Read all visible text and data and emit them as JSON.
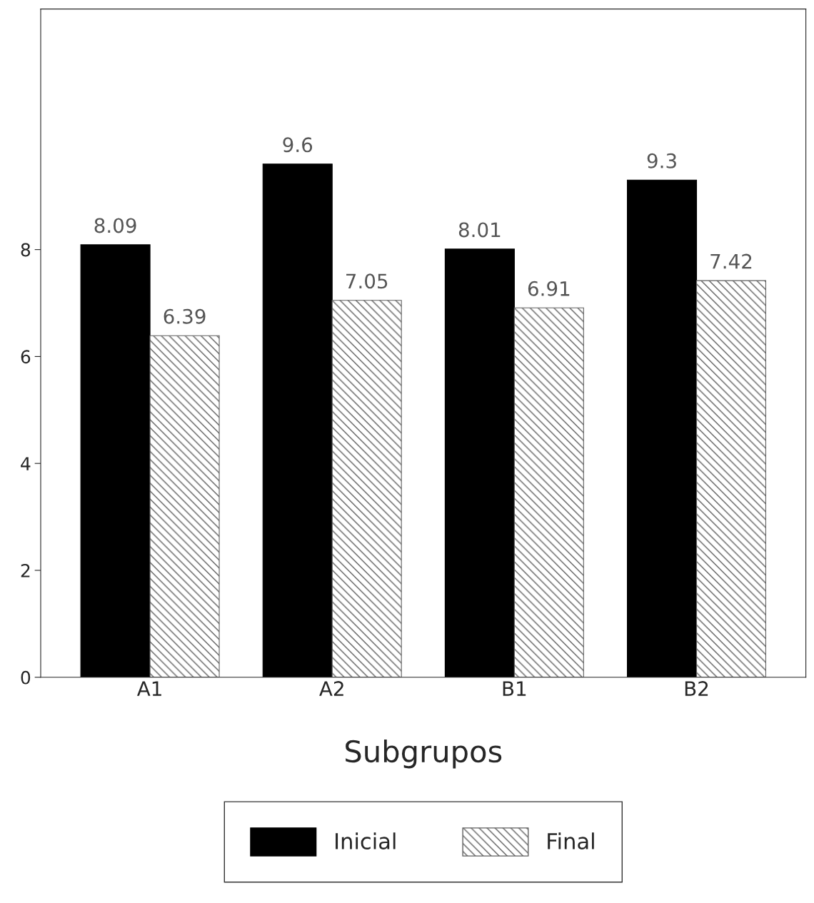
{
  "chart_data": {
    "type": "bar",
    "xlabel": "Subgrupos",
    "categories": [
      "A1",
      "A2",
      "B1",
      "B2"
    ],
    "series": [
      {
        "name": "Inicial",
        "color": "#000000",
        "values": [
          8.09,
          9.6,
          8.01,
          9.3
        ]
      },
      {
        "name": "Final",
        "color": "#606060",
        "values": [
          6.39,
          7.05,
          6.91,
          7.42
        ]
      }
    ],
    "ylim": [
      0,
      12.5
    ],
    "yticks": [
      0,
      2,
      4,
      6,
      8
    ],
    "data_labels": true,
    "grid": false,
    "legend": "bottom"
  }
}
